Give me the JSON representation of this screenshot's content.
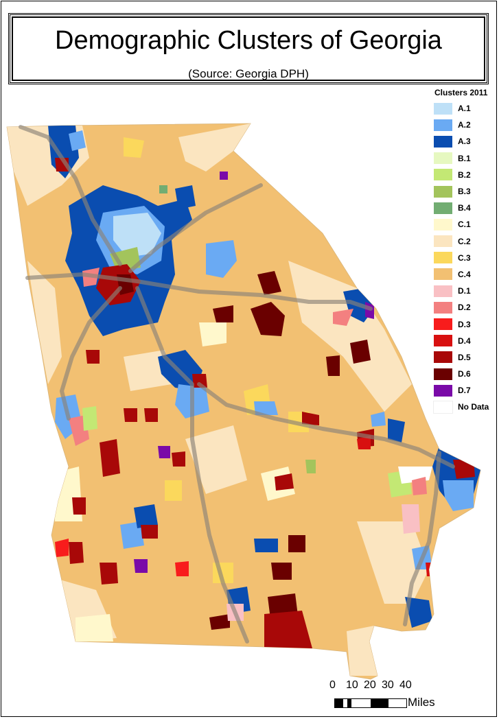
{
  "title": "Demographic Clusters of Georgia",
  "subtitle": "(Source: Georgia DPH)",
  "legend": {
    "title": "Clusters 2011",
    "items": [
      {
        "label": "A.1",
        "color": "#bee0f7"
      },
      {
        "label": "A.2",
        "color": "#6aaaf3"
      },
      {
        "label": "A.3",
        "color": "#0a4db0"
      },
      {
        "label": "B.1",
        "color": "#e6f8c0"
      },
      {
        "label": "B.2",
        "color": "#c3e874"
      },
      {
        "label": "B.3",
        "color": "#a3c45c"
      },
      {
        "label": "B.4",
        "color": "#72ad72"
      },
      {
        "label": "C.1",
        "color": "#fff8cc"
      },
      {
        "label": "C.2",
        "color": "#fbe5c0"
      },
      {
        "label": "C.3",
        "color": "#fbd85c"
      },
      {
        "label": "C.4",
        "color": "#f2c072"
      },
      {
        "label": "D.1",
        "color": "#f9c0c4"
      },
      {
        "label": "D.2",
        "color": "#f38080"
      },
      {
        "label": "D.3",
        "color": "#f81c1c"
      },
      {
        "label": "D.4",
        "color": "#d81010"
      },
      {
        "label": "D.5",
        "color": "#a80808"
      },
      {
        "label": "D.6",
        "color": "#6a0000"
      },
      {
        "label": "D.7",
        "color": "#7a0aa8"
      },
      {
        "label": "No Data",
        "color": "#ffffff"
      }
    ]
  },
  "scale": {
    "ticks": [
      "0",
      "10",
      "20",
      "30",
      "40"
    ],
    "unit": "Miles"
  },
  "map": {
    "state_fill": "#f2c072",
    "highway_color": "#8a8278"
  }
}
